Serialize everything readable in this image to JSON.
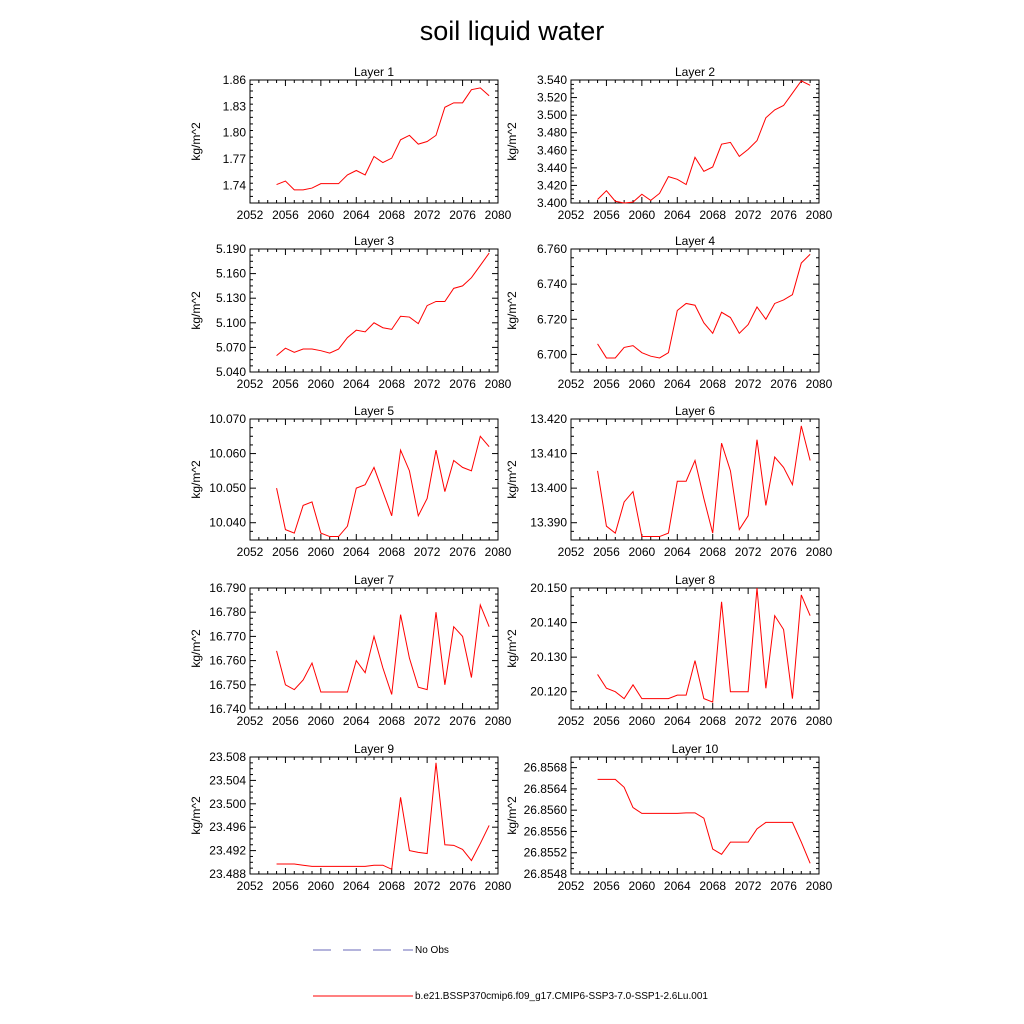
{
  "title": "soil liquid water",
  "colors": {
    "series": "#ff0000",
    "obs": "#6a6ab8",
    "axis": "#000000"
  },
  "legend": [
    {
      "label": "No Obs",
      "style": "dashed"
    },
    {
      "label": "b.e21.BSSP370cmip6.f09_g17.CMIP6-SSP3-7.0-SSP1-2.6Lu.001",
      "style": "solid"
    }
  ],
  "chart_data": [
    {
      "type": "line",
      "title": "Layer 1",
      "ylabel": "kg/m^2",
      "xlim": [
        2052,
        2080
      ],
      "ylim": [
        1.72,
        1.86
      ],
      "xticks": [
        2052,
        2056,
        2060,
        2064,
        2068,
        2072,
        2076,
        2080
      ],
      "yticks": [
        "1.74",
        "1.77",
        "1.80",
        "1.83",
        "1.86"
      ],
      "x": [
        2055,
        2056,
        2057,
        2058,
        2059,
        2060,
        2061,
        2062,
        2063,
        2064,
        2065,
        2066,
        2067,
        2068,
        2069,
        2070,
        2071,
        2072,
        2073,
        2074,
        2075,
        2076,
        2077,
        2078,
        2079
      ],
      "values": [
        1.741,
        1.745,
        1.735,
        1.735,
        1.737,
        1.742,
        1.742,
        1.742,
        1.752,
        1.757,
        1.752,
        1.773,
        1.766,
        1.771,
        1.792,
        1.797,
        1.787,
        1.79,
        1.797,
        1.829,
        1.834,
        1.834,
        1.849,
        1.851,
        1.842
      ]
    },
    {
      "type": "line",
      "title": "Layer 2",
      "ylabel": "kg/m^2",
      "xlim": [
        2052,
        2080
      ],
      "ylim": [
        3.4,
        3.54
      ],
      "xticks": [
        2052,
        2056,
        2060,
        2064,
        2068,
        2072,
        2076,
        2080
      ],
      "yticks": [
        "3.400",
        "3.420",
        "3.440",
        "3.460",
        "3.480",
        "3.500",
        "3.520",
        "3.540"
      ],
      "x": [
        2055,
        2056,
        2057,
        2058,
        2059,
        2060,
        2061,
        2062,
        2063,
        2064,
        2065,
        2066,
        2067,
        2068,
        2069,
        2070,
        2071,
        2072,
        2073,
        2074,
        2075,
        2076,
        2077,
        2078,
        2079
      ],
      "values": [
        3.404,
        3.414,
        3.402,
        3.4,
        3.401,
        3.41,
        3.403,
        3.411,
        3.43,
        3.427,
        3.421,
        3.452,
        3.436,
        3.441,
        3.467,
        3.469,
        3.453,
        3.461,
        3.471,
        3.497,
        3.506,
        3.511,
        3.525,
        3.539,
        3.534
      ]
    },
    {
      "type": "line",
      "title": "Layer 3",
      "ylabel": "kg/m^2",
      "xlim": [
        2052,
        2080
      ],
      "ylim": [
        5.04,
        5.19
      ],
      "xticks": [
        2052,
        2056,
        2060,
        2064,
        2068,
        2072,
        2076,
        2080
      ],
      "yticks": [
        "5.040",
        "5.070",
        "5.100",
        "5.130",
        "5.160",
        "5.190"
      ],
      "x": [
        2055,
        2056,
        2057,
        2058,
        2059,
        2060,
        2061,
        2062,
        2063,
        2064,
        2065,
        2066,
        2067,
        2068,
        2069,
        2070,
        2071,
        2072,
        2073,
        2074,
        2075,
        2076,
        2077,
        2078,
        2079
      ],
      "values": [
        5.06,
        5.069,
        5.064,
        5.068,
        5.068,
        5.066,
        5.063,
        5.068,
        5.082,
        5.091,
        5.089,
        5.1,
        5.094,
        5.092,
        5.108,
        5.107,
        5.099,
        5.121,
        5.126,
        5.126,
        5.142,
        5.145,
        5.155,
        5.17,
        5.185
      ]
    },
    {
      "type": "line",
      "title": "Layer 4",
      "ylabel": "kg/m^2",
      "xlim": [
        2052,
        2080
      ],
      "ylim": [
        6.69,
        6.76
      ],
      "xticks": [
        2052,
        2056,
        2060,
        2064,
        2068,
        2072,
        2076,
        2080
      ],
      "yticks": [
        "6.700",
        "6.720",
        "6.740",
        "6.760"
      ],
      "x": [
        2055,
        2056,
        2057,
        2058,
        2059,
        2060,
        2061,
        2062,
        2063,
        2064,
        2065,
        2066,
        2067,
        2068,
        2069,
        2070,
        2071,
        2072,
        2073,
        2074,
        2075,
        2076,
        2077,
        2078,
        2079
      ],
      "values": [
        6.706,
        6.698,
        6.698,
        6.704,
        6.705,
        6.701,
        6.699,
        6.698,
        6.701,
        6.725,
        6.729,
        6.728,
        6.718,
        6.712,
        6.724,
        6.721,
        6.712,
        6.717,
        6.727,
        6.72,
        6.729,
        6.731,
        6.734,
        6.752,
        6.757
      ]
    },
    {
      "type": "line",
      "title": "Layer 5",
      "ylabel": "kg/m^2",
      "xlim": [
        2052,
        2080
      ],
      "ylim": [
        10.035,
        10.07
      ],
      "xticks": [
        2052,
        2056,
        2060,
        2064,
        2068,
        2072,
        2076,
        2080
      ],
      "yticks": [
        "10.040",
        "10.050",
        "10.060",
        "10.070"
      ],
      "x": [
        2055,
        2056,
        2057,
        2058,
        2059,
        2060,
        2061,
        2062,
        2063,
        2064,
        2065,
        2066,
        2067,
        2068,
        2069,
        2070,
        2071,
        2072,
        2073,
        2074,
        2075,
        2076,
        2077,
        2078,
        2079
      ],
      "values": [
        10.05,
        10.038,
        10.037,
        10.045,
        10.046,
        10.037,
        10.036,
        10.036,
        10.039,
        10.05,
        10.051,
        10.056,
        10.049,
        10.042,
        10.061,
        10.055,
        10.042,
        10.047,
        10.061,
        10.049,
        10.058,
        10.056,
        10.055,
        10.065,
        10.062
      ]
    },
    {
      "type": "line",
      "title": "Layer 6",
      "ylabel": "kg/m^2",
      "xlim": [
        2052,
        2080
      ],
      "ylim": [
        13.385,
        13.42
      ],
      "xticks": [
        2052,
        2056,
        2060,
        2064,
        2068,
        2072,
        2076,
        2080
      ],
      "yticks": [
        "13.390",
        "13.400",
        "13.410",
        "13.420"
      ],
      "x": [
        2055,
        2056,
        2057,
        2058,
        2059,
        2060,
        2061,
        2062,
        2063,
        2064,
        2065,
        2066,
        2067,
        2068,
        2069,
        2070,
        2071,
        2072,
        2073,
        2074,
        2075,
        2076,
        2077,
        2078,
        2079
      ],
      "values": [
        13.405,
        13.389,
        13.387,
        13.396,
        13.399,
        13.386,
        13.386,
        13.386,
        13.387,
        13.402,
        13.402,
        13.408,
        13.397,
        13.387,
        13.413,
        13.405,
        13.388,
        13.392,
        13.414,
        13.395,
        13.409,
        13.406,
        13.401,
        13.418,
        13.408
      ]
    },
    {
      "type": "line",
      "title": "Layer 7",
      "ylabel": "kg/m^2",
      "xlim": [
        2052,
        2080
      ],
      "ylim": [
        16.74,
        16.79
      ],
      "xticks": [
        2052,
        2056,
        2060,
        2064,
        2068,
        2072,
        2076,
        2080
      ],
      "yticks": [
        "16.740",
        "16.750",
        "16.760",
        "16.770",
        "16.780",
        "16.790"
      ],
      "x": [
        2055,
        2056,
        2057,
        2058,
        2059,
        2060,
        2061,
        2062,
        2063,
        2064,
        2065,
        2066,
        2067,
        2068,
        2069,
        2070,
        2071,
        2072,
        2073,
        2074,
        2075,
        2076,
        2077,
        2078,
        2079
      ],
      "values": [
        16.764,
        16.75,
        16.748,
        16.752,
        16.759,
        16.747,
        16.747,
        16.747,
        16.747,
        16.76,
        16.755,
        16.77,
        16.757,
        16.746,
        16.779,
        16.761,
        16.749,
        16.748,
        16.78,
        16.75,
        16.774,
        16.77,
        16.753,
        16.783,
        16.774
      ]
    },
    {
      "type": "line",
      "title": "Layer 8",
      "ylabel": "kg/m^2",
      "xlim": [
        2052,
        2080
      ],
      "ylim": [
        20.115,
        20.15
      ],
      "xticks": [
        2052,
        2056,
        2060,
        2064,
        2068,
        2072,
        2076,
        2080
      ],
      "yticks": [
        "20.120",
        "20.130",
        "20.140",
        "20.150"
      ],
      "x": [
        2055,
        2056,
        2057,
        2058,
        2059,
        2060,
        2061,
        2062,
        2063,
        2064,
        2065,
        2066,
        2067,
        2068,
        2069,
        2070,
        2071,
        2072,
        2073,
        2074,
        2075,
        2076,
        2077,
        2078,
        2079
      ],
      "values": [
        20.125,
        20.121,
        20.12,
        20.118,
        20.122,
        20.118,
        20.118,
        20.118,
        20.118,
        20.119,
        20.119,
        20.129,
        20.118,
        20.117,
        20.146,
        20.12,
        20.12,
        20.12,
        20.15,
        20.121,
        20.142,
        20.138,
        20.118,
        20.148,
        20.142
      ]
    },
    {
      "type": "line",
      "title": "Layer 9",
      "ylabel": "kg/m^2",
      "xlim": [
        2052,
        2080
      ],
      "ylim": [
        23.488,
        23.508
      ],
      "xticks": [
        2052,
        2056,
        2060,
        2064,
        2068,
        2072,
        2076,
        2080
      ],
      "yticks": [
        "23.488",
        "23.492",
        "23.496",
        "23.500",
        "23.504",
        "23.508"
      ],
      "x": [
        2055,
        2056,
        2057,
        2058,
        2059,
        2060,
        2061,
        2062,
        2063,
        2064,
        2065,
        2066,
        2067,
        2068,
        2069,
        2070,
        2071,
        2072,
        2073,
        2074,
        2075,
        2076,
        2077,
        2078,
        2079
      ],
      "values": [
        23.4897,
        23.4897,
        23.4897,
        23.4895,
        23.4893,
        23.4893,
        23.4893,
        23.4893,
        23.4893,
        23.4893,
        23.4893,
        23.4895,
        23.4895,
        23.4888,
        23.5011,
        23.492,
        23.4917,
        23.4915,
        23.507,
        23.493,
        23.4929,
        23.4922,
        23.4903,
        23.4932,
        23.4963
      ]
    },
    {
      "type": "line",
      "title": "Layer 10",
      "ylabel": "kg/m^2",
      "xlim": [
        2052,
        2080
      ],
      "ylim": [
        26.8548,
        26.857
      ],
      "xticks": [
        2052,
        2056,
        2060,
        2064,
        2068,
        2072,
        2076,
        2080
      ],
      "yticks": [
        "26.8548",
        "26.8552",
        "26.8556",
        "26.8560",
        "26.8564",
        "26.8568"
      ],
      "x": [
        2055,
        2056,
        2057,
        2058,
        2059,
        2060,
        2061,
        2062,
        2063,
        2064,
        2065,
        2066,
        2067,
        2068,
        2069,
        2070,
        2071,
        2072,
        2073,
        2074,
        2075,
        2076,
        2077,
        2078,
        2079
      ],
      "values": [
        26.85658,
        26.85658,
        26.85658,
        26.85643,
        26.85605,
        26.85594,
        26.85594,
        26.85594,
        26.85594,
        26.85594,
        26.85595,
        26.85595,
        26.85585,
        26.85527,
        26.85517,
        26.8554,
        26.8554,
        26.8554,
        26.85565,
        26.85577,
        26.85577,
        26.85577,
        26.85577,
        26.8554,
        26.855
      ]
    }
  ]
}
